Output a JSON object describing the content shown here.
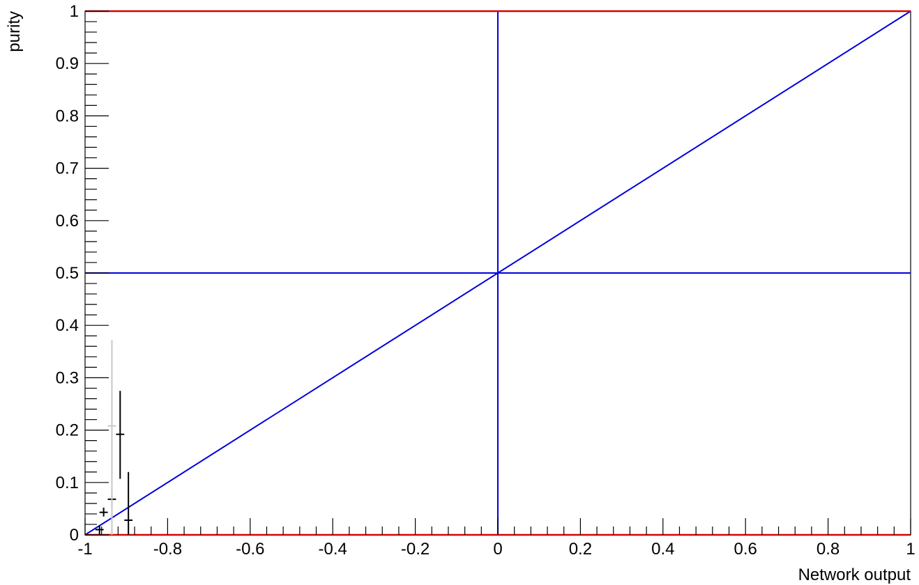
{
  "chart_data": {
    "type": "scatter",
    "title": "",
    "xlabel": "Network output",
    "ylabel": "purity",
    "xlim": [
      -1,
      1
    ],
    "ylim": [
      0,
      1
    ],
    "x_ticks": [
      "-1",
      "-0.8",
      "-0.6",
      "-0.4",
      "-0.2",
      "0",
      "0.2",
      "0.4",
      "0.6",
      "0.8",
      "1"
    ],
    "y_ticks": [
      "0",
      "0.1",
      "0.2",
      "0.3",
      "0.4",
      "0.5",
      "0.6",
      "0.7",
      "0.8",
      "0.9",
      "1"
    ],
    "reference_lines": [
      {
        "kind": "diagonal",
        "x": [
          -1,
          1
        ],
        "y": [
          0,
          1
        ],
        "color": "#0000dd"
      },
      {
        "kind": "horizontal",
        "y": 0.5,
        "color": "#0000dd"
      },
      {
        "kind": "vertical",
        "x": 0,
        "color": "#0000dd"
      },
      {
        "kind": "horizontal",
        "y": 1,
        "color": "#dd0000"
      },
      {
        "kind": "horizontal",
        "y": 0,
        "color": "#dd0000"
      }
    ],
    "series": [
      {
        "color": "#000000",
        "points": [
          {
            "x": -0.965,
            "y": 0.01,
            "xerr": 0.01,
            "yerr_lo": 0.01,
            "yerr_hi": 0.008
          },
          {
            "x": -0.955,
            "y": 0.043,
            "xerr": 0.01,
            "yerr_lo": 0.008,
            "yerr_hi": 0.009
          },
          {
            "x": -0.935,
            "y": 0.068,
            "xerr": 0.01,
            "yerr_lo": 0.016,
            "yerr_hi": 0.018
          },
          {
            "x": -0.915,
            "y": 0.192,
            "xerr": 0.01,
            "yerr_lo": 0.085,
            "yerr_hi": 0.083
          },
          {
            "x": -0.895,
            "y": 0.028,
            "xerr": 0.01,
            "yerr_lo": 0.028,
            "yerr_hi": 0.092
          }
        ]
      },
      {
        "color": "#c8c8c8",
        "points": [
          {
            "x": -0.935,
            "y": 0.208,
            "xerr": 0.01,
            "yerr_lo": 0.208,
            "yerr_hi": 0.164
          }
        ]
      }
    ]
  }
}
